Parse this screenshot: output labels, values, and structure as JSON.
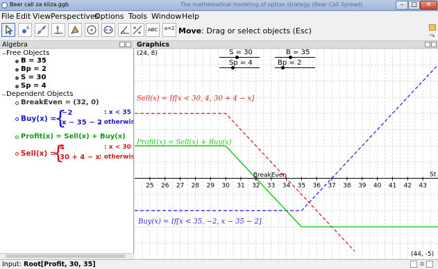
{
  "window": {
    "title": "Bear call za kliza.ggb",
    "title_faded": "The mathematical modeling of option strategy (Bear Call Spread)"
  },
  "menu": [
    "File",
    "Edit",
    "View",
    "Perspectives",
    "Options",
    "Tools",
    "Window",
    "Help"
  ],
  "toolbar": {
    "tool_name": "Move",
    "tool_help": ": Drag or select objects (Esc)",
    "abc_label": "ABC",
    "slider_label": "a=2"
  },
  "algebra": {
    "title": "Algebra",
    "free_header": "Free Objects",
    "free": [
      "B = 35",
      "Bp = 2",
      "S = 30",
      "Sp = 4"
    ],
    "dependent_header": "Dependent Objects",
    "breakeven": "BreakEven = (32, 0)",
    "buy": {
      "name": "Buy(x) =",
      "case1_value": "−2",
      "case1_cond": ": x < 35",
      "case2_value": "x − 35 − 2",
      "case2_cond": ": otherwise"
    },
    "profit": "Profit(x) = Sell(x) + Buy(x)",
    "sell": {
      "name": "Sell(x) =",
      "case1_value": "4",
      "case1_cond": ": x < 30",
      "case2_value": "30 + 4 − x",
      "case2_cond": ": otherwise"
    }
  },
  "graphics": {
    "title": "Graphics",
    "corner_top_left": "(24, 8)",
    "corner_bottom_right": "(44, -5)",
    "sliders": [
      {
        "label": "S = 30"
      },
      {
        "label": "B = 35"
      },
      {
        "label": "Sp = 4"
      },
      {
        "label": "Bp = 2"
      }
    ],
    "x_ticks": [
      "25",
      "26",
      "27",
      "28",
      "29",
      "30",
      "31",
      "32",
      "33",
      "34",
      "35",
      "36",
      "37",
      "38",
      "39",
      "40",
      "41",
      "42",
      "43"
    ],
    "x_axis_label": "St",
    "breakeven_label": "BreakEven",
    "sell_label": "Sell(x) = If[x < 30, 4, 30 + 4 − x]",
    "profit_label": "Profit(x) = Sell(x) + Buy(x)",
    "buy_label": "Buy(x) = If[x < 35, −2, x − 35 − 2]"
  },
  "input": {
    "label": "Input:",
    "value": "Root[Profit, 30, 35]"
  },
  "colors": {
    "sell": "#dd1f1f",
    "buy": "#2828dd",
    "profit": "#22cc22"
  }
}
